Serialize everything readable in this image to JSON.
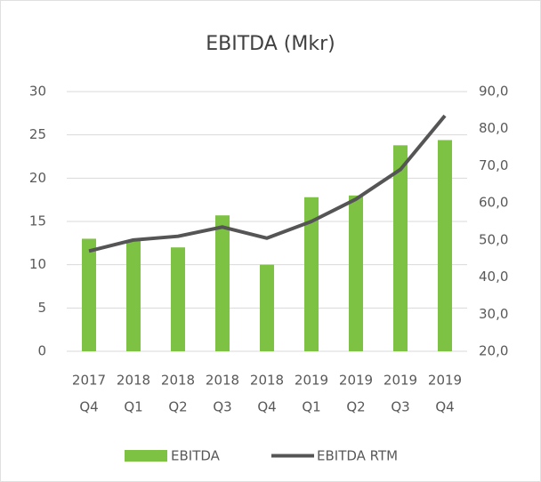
{
  "chart_data": {
    "type": "bar-line",
    "title": "EBITDA (Mkr)",
    "categories": [
      [
        "2017",
        "Q4"
      ],
      [
        "2018",
        "Q1"
      ],
      [
        "2018",
        "Q2"
      ],
      [
        "2018",
        "Q3"
      ],
      [
        "2018",
        "Q4"
      ],
      [
        "2019",
        "Q1"
      ],
      [
        "2019",
        "Q2"
      ],
      [
        "2019",
        "Q3"
      ],
      [
        "2019",
        "Q4"
      ]
    ],
    "series": [
      {
        "name": "EBITDA",
        "color": "#7dc242",
        "type": "bar",
        "values": [
          13,
          12.8,
          12,
          15.7,
          10,
          17.8,
          18,
          23.8,
          24.4
        ]
      },
      {
        "name": "EBITDA RTM",
        "color": "#555555",
        "type": "line",
        "axis": "y2",
        "values": [
          47,
          50,
          51,
          53.5,
          50.5,
          55,
          61,
          69,
          83.5
        ]
      }
    ],
    "ylim": [
      0,
      30
    ],
    "yticks": [
      0,
      5,
      10,
      15,
      20,
      25,
      30
    ],
    "y2lim": [
      20,
      90
    ],
    "y2ticks": [
      {
        "value": 20,
        "label": "20,0"
      },
      {
        "value": 30,
        "label": "30,0"
      },
      {
        "value": 40,
        "label": "40,0"
      },
      {
        "value": 50,
        "label": "50,0"
      },
      {
        "value": 60,
        "label": "60,0"
      },
      {
        "value": 70,
        "label": "70,0"
      },
      {
        "value": 80,
        "label": "80,0"
      },
      {
        "value": 90,
        "label": "90,0"
      }
    ],
    "grid": true,
    "legend": "bottom"
  }
}
